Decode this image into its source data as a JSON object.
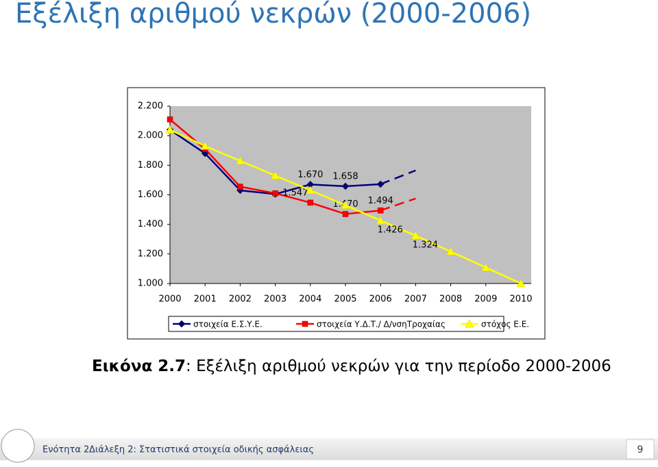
{
  "slide": {
    "title": "Εξέλιξη αριθμού νεκρών (2000-2006)"
  },
  "chart_data": {
    "type": "line",
    "categories": [
      "2000",
      "2001",
      "2002",
      "2003",
      "2004",
      "2005",
      "2006",
      "2007",
      "2008",
      "2009",
      "2010"
    ],
    "series": [
      {
        "name": "στοιχεία Ε.Σ.Υ.Ε.",
        "color": "#000080",
        "marker": "diamond",
        "dash_from": 6,
        "values": [
          2040,
          1880,
          1630,
          1605,
          1670,
          1658,
          1672,
          1765,
          null,
          null,
          null
        ],
        "value_labels": [
          null,
          null,
          null,
          null,
          "1.670",
          "1.658",
          null,
          null,
          null,
          null,
          null
        ]
      },
      {
        "name": "στοιχεία Υ.Δ.Τ./ Δ/νσηΤροχαίας",
        "color": "#ff0000",
        "marker": "square",
        "dash_from": 6,
        "values": [
          2110,
          1910,
          1655,
          1610,
          1547,
          1470,
          1494,
          1575,
          null,
          null,
          null
        ],
        "value_labels": [
          null,
          null,
          null,
          null,
          "1.547",
          "1.470",
          "1.494",
          null,
          null,
          null,
          null
        ]
      },
      {
        "name": "στόχος Ε.Ε.",
        "color": "#ffff00",
        "marker": "triangle",
        "values": [
          2040,
          1930,
          1830,
          1730,
          1630,
          1530,
          1426,
          1324,
          1216,
          1108,
          1000
        ],
        "value_labels": [
          null,
          null,
          null,
          null,
          null,
          null,
          "1.426",
          "1.324",
          null,
          null,
          null
        ]
      }
    ],
    "ylim": [
      1000,
      2200
    ],
    "yticks": [
      {
        "value": 1000,
        "label": "1.000"
      },
      {
        "value": 1200,
        "label": "1.200"
      },
      {
        "value": 1400,
        "label": "1.400"
      },
      {
        "value": 1600,
        "label": "1.600"
      },
      {
        "value": 1800,
        "label": "1.800"
      },
      {
        "value": 2000,
        "label": "2.000"
      },
      {
        "value": 2200,
        "label": "2.200"
      }
    ],
    "legend": "bottom"
  },
  "caption": {
    "label": "Εικόνα 2.7",
    "text": ": Εξέλιξη αριθμού νεκρών για την περίοδο 2000-2006"
  },
  "footer": {
    "unit": "Ενότητα 2",
    "lecture": "Διάλεξη 2: Στατιστικά στοιχεία οδικής ασφάλειας",
    "page": "9"
  }
}
